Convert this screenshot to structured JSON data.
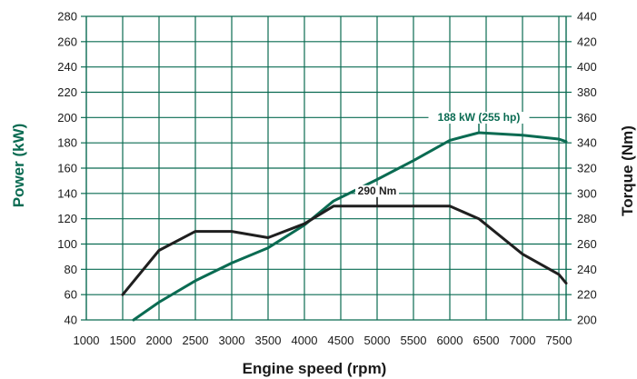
{
  "chart_data": {
    "type": "line",
    "xlabel": "Engine speed (rpm)",
    "ylabel_left": "Power (kW)",
    "ylabel_right": "Torque (Nm)",
    "x_ticks": [
      1000,
      1500,
      2000,
      2500,
      3000,
      3500,
      4000,
      4500,
      5000,
      5500,
      6000,
      6500,
      7000,
      7500
    ],
    "y_left_ticks": [
      40,
      60,
      80,
      100,
      120,
      140,
      160,
      180,
      200,
      220,
      240,
      260,
      280
    ],
    "y_right_ticks": [
      200,
      220,
      240,
      260,
      280,
      300,
      320,
      340,
      360,
      380,
      400,
      420,
      440
    ],
    "xlim": [
      1000,
      7700
    ],
    "ylim_left": [
      40,
      280
    ],
    "ylim_right": [
      200,
      440
    ],
    "grid": true,
    "colors": {
      "power": "#0a6b52",
      "torque": "#1f1f1f",
      "grid": "#0a6b52"
    },
    "series": [
      {
        "name": "Power",
        "axis": "left",
        "x": [
          1650,
          2000,
          2500,
          3000,
          3500,
          4000,
          4400,
          5000,
          5500,
          6000,
          6400,
          7000,
          7500,
          7600
        ],
        "values": [
          40,
          54,
          71,
          85,
          97,
          115,
          134,
          151,
          166,
          182,
          188,
          186,
          183,
          181
        ]
      },
      {
        "name": "Torque",
        "axis": "right",
        "x": [
          1500,
          2000,
          2500,
          3000,
          3500,
          4000,
          4400,
          5000,
          6000,
          6400,
          7000,
          7500,
          7600
        ],
        "values": [
          220,
          255,
          270,
          270,
          265,
          276,
          290,
          290,
          290,
          280,
          252,
          236,
          229
        ]
      }
    ],
    "annotations": [
      {
        "text": "188 kW (255 hp)",
        "x": 6400,
        "y": 188,
        "axis": "left",
        "series": "Power"
      },
      {
        "text": "290 Nm",
        "x": 5000,
        "y": 290,
        "axis": "right",
        "series": "Torque"
      }
    ]
  }
}
